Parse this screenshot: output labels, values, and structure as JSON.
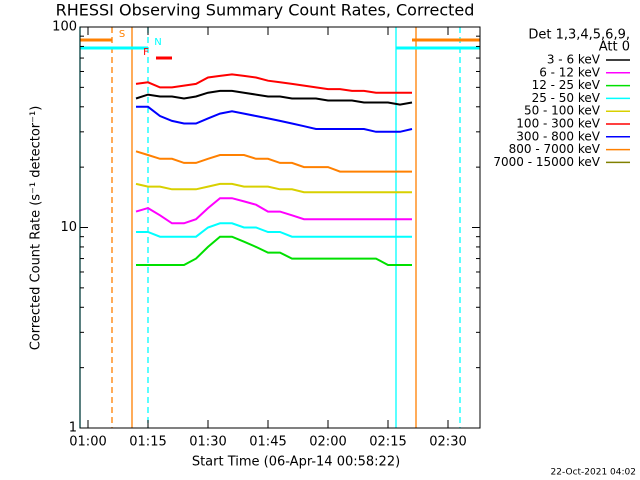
{
  "chart_data": {
    "type": "line",
    "title": "RHESSI Observing Summary Count Rates, Corrected",
    "xlabel": "Start Time (06-Apr-14 00:58:22)",
    "ylabel": "Corrected Count Rate (s⁻¹ detector⁻¹)",
    "footer": "22-Oct-2021 04:02",
    "legend_title": [
      "Det 1,3,4,5,6,9,",
      "Att 0"
    ],
    "log_y": true,
    "xlim": [
      "00:58",
      "02:38"
    ],
    "xticks": [
      "01:00",
      "01:15",
      "01:30",
      "01:45",
      "02:00",
      "02:15",
      "02:30"
    ],
    "ylim": [
      1,
      100
    ],
    "yticks": [
      1,
      10,
      100
    ],
    "yminorticks": [
      2,
      3,
      4,
      5,
      6,
      7,
      8,
      9,
      20,
      30,
      40,
      50,
      60,
      70,
      80,
      90
    ],
    "x": [
      "01:12",
      "01:15",
      "01:18",
      "01:21",
      "01:24",
      "01:27",
      "01:30",
      "01:33",
      "01:36",
      "01:39",
      "01:42",
      "01:45",
      "01:48",
      "01:51",
      "01:54",
      "01:57",
      "02:00",
      "02:03",
      "02:06",
      "02:09",
      "02:12",
      "02:15",
      "02:18",
      "02:21"
    ],
    "series": [
      {
        "name": "3 - 6 keV",
        "color": "#000000",
        "values": [
          44,
          46,
          45,
          45,
          44,
          45,
          47,
          48,
          48,
          47,
          46,
          45,
          45,
          44,
          44,
          44,
          43,
          43,
          43,
          42,
          42,
          42,
          41,
          42
        ]
      },
      {
        "name": "6 - 12 keV",
        "color": "#ff00ff",
        "values": [
          12,
          12.5,
          11.5,
          10.5,
          10.5,
          11,
          12.5,
          14,
          14,
          13.5,
          13,
          12,
          12,
          11.5,
          11,
          11,
          11,
          11,
          11,
          11,
          11,
          11,
          11,
          11
        ]
      },
      {
        "name": "12 - 25 keV",
        "color": "#00e000",
        "values": [
          6.5,
          6.5,
          6.5,
          6.5,
          6.5,
          7,
          8,
          9,
          9,
          8.5,
          8,
          7.5,
          7.5,
          7,
          7,
          7,
          7,
          7,
          7,
          7,
          7,
          6.5,
          6.5,
          6.5
        ]
      },
      {
        "name": "25 - 50 keV",
        "color": "#00ffff",
        "values": [
          9.5,
          9.5,
          9,
          9,
          9,
          9,
          10,
          10.5,
          10.5,
          10,
          10,
          9.5,
          9.5,
          9,
          9,
          9,
          9,
          9,
          9,
          9,
          9,
          9,
          9,
          9
        ]
      },
      {
        "name": "50 - 100 keV",
        "color": "#d8d000",
        "values": [
          16.5,
          16,
          16,
          15.5,
          15.5,
          15.5,
          16,
          16.5,
          16.5,
          16,
          16,
          16,
          15.5,
          15.5,
          15,
          15,
          15,
          15,
          15,
          15,
          15,
          15,
          15,
          15
        ]
      },
      {
        "name": "100 - 300 keV",
        "color": "#ff0000",
        "values": [
          52,
          53,
          50,
          50,
          51,
          52,
          56,
          57,
          58,
          57,
          56,
          54,
          53,
          52,
          51,
          50,
          49,
          49,
          48,
          48,
          47,
          47,
          47,
          47
        ]
      },
      {
        "name": "300 - 800 keV",
        "color": "#0000ff",
        "values": [
          40,
          40,
          36,
          34,
          33,
          33,
          35,
          37,
          38,
          37,
          36,
          35,
          34,
          33,
          32,
          31,
          31,
          31,
          31,
          31,
          30,
          30,
          30,
          31
        ]
      },
      {
        "name": "800 - 7000 keV",
        "color": "#ff8000",
        "values": [
          24,
          23,
          22,
          22,
          21,
          21,
          22,
          23,
          23,
          23,
          22,
          22,
          21,
          21,
          20,
          20,
          20,
          19,
          19,
          19,
          19,
          19,
          19,
          19
        ]
      },
      {
        "name": "7000 - 15000 keV",
        "color": "#808000",
        "values": [
          null,
          null,
          null,
          null,
          null,
          null,
          null,
          null,
          null,
          null,
          null,
          null,
          null,
          null,
          null,
          null,
          null,
          null,
          null,
          null,
          null,
          null,
          null,
          null
        ]
      }
    ],
    "intervals": [
      {
        "label": "S",
        "color": "#ff8000",
        "start": "00:58",
        "end": "01:06"
      },
      {
        "label": "N",
        "color": "#00ffff",
        "start": "00:58",
        "end": "01:15"
      },
      {
        "label": "F",
        "color": "#ff0000",
        "start": "01:17",
        "end": "01:21"
      },
      {
        "color": "#00ffff",
        "start": "02:17",
        "end": "02:38"
      },
      {
        "color": "#ff8000",
        "start": "02:21",
        "end": "02:38"
      }
    ],
    "markers": [
      {
        "time": "00:58",
        "color": "#00ffff",
        "dashed": false
      },
      {
        "time": "01:06",
        "color": "#ff8000",
        "dashed": true
      },
      {
        "time": "01:11",
        "color": "#ff8000",
        "dashed": false
      },
      {
        "time": "01:15",
        "color": "#00ffff",
        "dashed": true
      },
      {
        "time": "02:17",
        "color": "#00ffff",
        "dashed": false
      },
      {
        "time": "02:22",
        "color": "#ff8000",
        "dashed": false
      },
      {
        "time": "02:33",
        "color": "#00ffff",
        "dashed": true
      }
    ]
  }
}
